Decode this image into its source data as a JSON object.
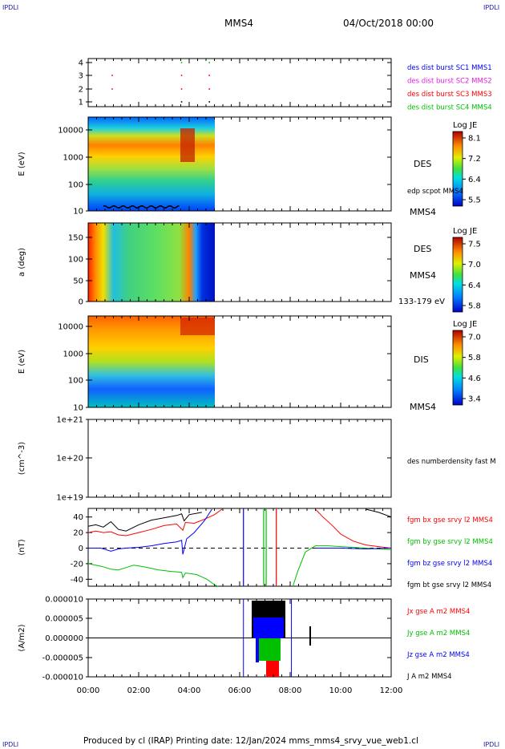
{
  "corner_label": "IPDLI",
  "header": {
    "spacecraft": "MMS4",
    "date": "04/Oct/2018 00:00"
  },
  "footer": "Produced by cl (IRAP)   Printing date: 12/Jan/2024   mms_mms4_srvy_vue_web1.cl",
  "time_axis": {
    "ticks": [
      "00:00",
      "02:00",
      "04:00",
      "06:00",
      "08:00",
      "10:00",
      "12:00"
    ],
    "range_hours": [
      0,
      12
    ]
  },
  "colors": {
    "blue": "#0000ff",
    "magenta": "#e020e0",
    "red": "#ff0000",
    "green": "#00c000",
    "black": "#000000"
  },
  "chart_data": [
    {
      "id": "panel1",
      "type": "scatter",
      "yticks": [
        "1",
        "2",
        "3",
        "4"
      ],
      "legend": [
        {
          "text": "des dist burst SC1 MMS1",
          "color": "#0000ff"
        },
        {
          "text": "des dist burst SC2 MMS2",
          "color": "#e020e0"
        },
        {
          "text": "des dist burst SC3 MMS3",
          "color": "#ff0000"
        },
        {
          "text": "des dist burst SC4 MMS4",
          "color": "#00c000"
        }
      ],
      "marks": [
        {
          "sc": 1,
          "color": "#000000",
          "t": [
            3.7,
            4.8
          ]
        },
        {
          "sc": 2,
          "color": "#ff0000",
          "t": [
            0.95,
            3.7,
            4.8
          ]
        },
        {
          "sc": 3,
          "color": "#ff0000",
          "t": [
            0.95,
            3.7,
            4.8
          ]
        },
        {
          "sc": 4,
          "color": "#00c000",
          "t": [
            3.7,
            4.8
          ]
        }
      ]
    },
    {
      "id": "panel2",
      "type": "heatmap",
      "ylabel": "E (eV)",
      "yticks": [
        "10",
        "100",
        "1000",
        "10000"
      ],
      "right_labels": [
        "DES",
        "edp scpot MMS4",
        "MMS4"
      ],
      "colorbar": {
        "title": "Log JE",
        "ticks": [
          "8.1",
          "7.2",
          "6.4",
          "5.5"
        ]
      },
      "t_range": [
        0,
        5.0
      ]
    },
    {
      "id": "panel3",
      "type": "heatmap",
      "ylabel": "a (deg)",
      "yticks": [
        "0",
        "50",
        "100",
        "150"
      ],
      "right_labels": [
        "DES",
        "MMS4",
        "133-179 eV"
      ],
      "colorbar": {
        "title": "Log JE",
        "ticks": [
          "7.5",
          "7.0",
          "6.4",
          "5.8"
        ]
      },
      "t_range": [
        0,
        5.0
      ]
    },
    {
      "id": "panel4",
      "type": "heatmap",
      "ylabel": "E (eV)",
      "yticks": [
        "10",
        "100",
        "1000",
        "10000"
      ],
      "right_labels": [
        "DIS",
        "MMS4"
      ],
      "colorbar": {
        "title": "Log JE",
        "ticks": [
          "7.0",
          "5.8",
          "4.6",
          "3.4"
        ]
      },
      "t_range": [
        0,
        5.0
      ]
    },
    {
      "id": "panel5",
      "type": "line",
      "ylabel": "(cm^-3)",
      "yticks": [
        "1e+19",
        "1e+20",
        "1e+21"
      ],
      "legend": [
        {
          "text": "des numberdensity fast M",
          "color": "#000000"
        }
      ]
    },
    {
      "id": "panel6",
      "type": "line",
      "ylabel": "(nT)",
      "yticks": [
        "-40",
        "-20",
        "0",
        "20",
        "40"
      ],
      "ylim": [
        -50,
        50
      ],
      "legend": [
        {
          "text": "fgm bx gse srvy l2 MMS4",
          "color": "#ff0000"
        },
        {
          "text": "fgm by gse srvy l2 MMS4",
          "color": "#00c000"
        },
        {
          "text": "fgm bz gse srvy l2 MMS4",
          "color": "#0000ff"
        },
        {
          "text": "fgm bt gse srvy l2 MMS4",
          "color": "#000000"
        }
      ],
      "series": [
        {
          "name": "fgm bt gse srvy l2 MMS4",
          "color": "#000000",
          "points": [
            [
              0,
              28
            ],
            [
              0.3,
              30
            ],
            [
              0.6,
              27
            ],
            [
              0.9,
              34
            ],
            [
              1.2,
              24
            ],
            [
              1.5,
              22
            ],
            [
              2.0,
              30
            ],
            [
              2.5,
              36
            ],
            [
              3.0,
              39
            ],
            [
              3.5,
              42
            ],
            [
              3.7,
              44
            ],
            [
              3.8,
              35
            ],
            [
              4.0,
              43
            ],
            [
              4.5,
              46
            ]
          ]
        },
        {
          "name": "fgm bx gse srvy l2 MMS4",
          "color": "#ff0000",
          "points": [
            [
              0,
              20
            ],
            [
              0.3,
              22
            ],
            [
              0.6,
              20
            ],
            [
              0.9,
              21
            ],
            [
              1.2,
              17
            ],
            [
              1.5,
              16
            ],
            [
              2.0,
              20
            ],
            [
              2.5,
              24
            ],
            [
              3.0,
              29
            ],
            [
              3.5,
              31
            ],
            [
              3.75,
              23
            ],
            [
              3.85,
              33
            ],
            [
              4.2,
              32
            ],
            [
              4.6,
              37
            ],
            [
              5.0,
              43
            ],
            [
              5.3,
              50
            ]
          ]
        },
        {
          "name": "fgm by gse srvy l2 MMS4",
          "color": "#00c000",
          "points": [
            [
              0,
              -20
            ],
            [
              0.3,
              -22
            ],
            [
              0.6,
              -24
            ],
            [
              0.9,
              -27
            ],
            [
              1.2,
              -28
            ],
            [
              1.5,
              -25
            ],
            [
              1.8,
              -22
            ],
            [
              2.2,
              -24
            ],
            [
              2.8,
              -28
            ],
            [
              3.3,
              -30
            ],
            [
              3.7,
              -31
            ],
            [
              3.75,
              -38
            ],
            [
              3.85,
              -32
            ],
            [
              4.3,
              -34
            ],
            [
              4.7,
              -40
            ],
            [
              5.0,
              -47
            ],
            [
              5.2,
              -50
            ]
          ]
        },
        {
          "name": "fgm bz gse srvy l2 MMS4",
          "color": "#0000ff",
          "points": [
            [
              0,
              0
            ],
            [
              0.5,
              0
            ],
            [
              0.9,
              -4
            ],
            [
              1.2,
              -1
            ],
            [
              1.5,
              0
            ],
            [
              2.0,
              1
            ],
            [
              2.5,
              3
            ],
            [
              3.0,
              6
            ],
            [
              3.5,
              8
            ],
            [
              3.7,
              10
            ],
            [
              3.75,
              -8
            ],
            [
              3.9,
              12
            ],
            [
              4.2,
              20
            ],
            [
              4.6,
              35
            ],
            [
              4.9,
              50
            ]
          ]
        },
        {
          "name": "fgm bx gse srvy l2 MMS4 (late)",
          "color": "#ff0000",
          "points": [
            [
              9.0,
              50
            ],
            [
              9.3,
              40
            ],
            [
              9.7,
              28
            ],
            [
              10.0,
              18
            ],
            [
              10.5,
              9
            ],
            [
              11.0,
              4
            ],
            [
              11.5,
              2
            ],
            [
              12.0,
              0
            ]
          ]
        },
        {
          "name": "fgm by gse srvy l2 MMS4 (late)",
          "color": "#00c000",
          "points": [
            [
              8.1,
              -50
            ],
            [
              8.3,
              -30
            ],
            [
              8.6,
              -5
            ],
            [
              9.0,
              3
            ],
            [
              9.5,
              3
            ],
            [
              10.0,
              2
            ],
            [
              10.5,
              1
            ],
            [
              11.0,
              0
            ],
            [
              11.5,
              -1
            ],
            [
              12.0,
              -2
            ]
          ]
        },
        {
          "name": "fgm bz gse srvy l2 MMS4 (late)",
          "color": "#0000ff",
          "points": [
            [
              9.0,
              0
            ],
            [
              10.0,
              0
            ],
            [
              11.0,
              -1
            ],
            [
              12.0,
              0
            ]
          ]
        },
        {
          "name": "fgm bt gse srvy l2 MMS4 (late)",
          "color": "#000000",
          "points": [
            [
              11.0,
              50
            ],
            [
              11.5,
              46
            ],
            [
              12.0,
              40
            ]
          ]
        }
      ],
      "vlines": [
        {
          "t": 6.15,
          "color": "#0000ff"
        },
        {
          "t": 6.95,
          "color": "#00c000"
        },
        {
          "t": 7.05,
          "color": "#00c000"
        },
        {
          "t": 7.45,
          "color": "#ff0000"
        }
      ]
    },
    {
      "id": "panel7",
      "type": "line",
      "ylabel": "(A/m2)",
      "yticks": [
        "-0.000010",
        "-0.000005",
        "0.000000",
        "0.000005",
        "0.000010"
      ],
      "ylim": [
        -1e-05,
        1e-05
      ],
      "legend": [
        {
          "text": "Jx gse A m2 MMS4",
          "color": "#ff0000"
        },
        {
          "text": "Jy gse A m2 MMS4",
          "color": "#00c000"
        },
        {
          "text": "Jz gse A m2 MMS4",
          "color": "#0000ff"
        },
        {
          "text": "J A m2 MMS4",
          "color": "#000000"
        }
      ],
      "vlines": [
        {
          "t": 6.15,
          "color": "#0000ff"
        },
        {
          "t": 8.05,
          "color": "#0000ff"
        }
      ]
    }
  ]
}
